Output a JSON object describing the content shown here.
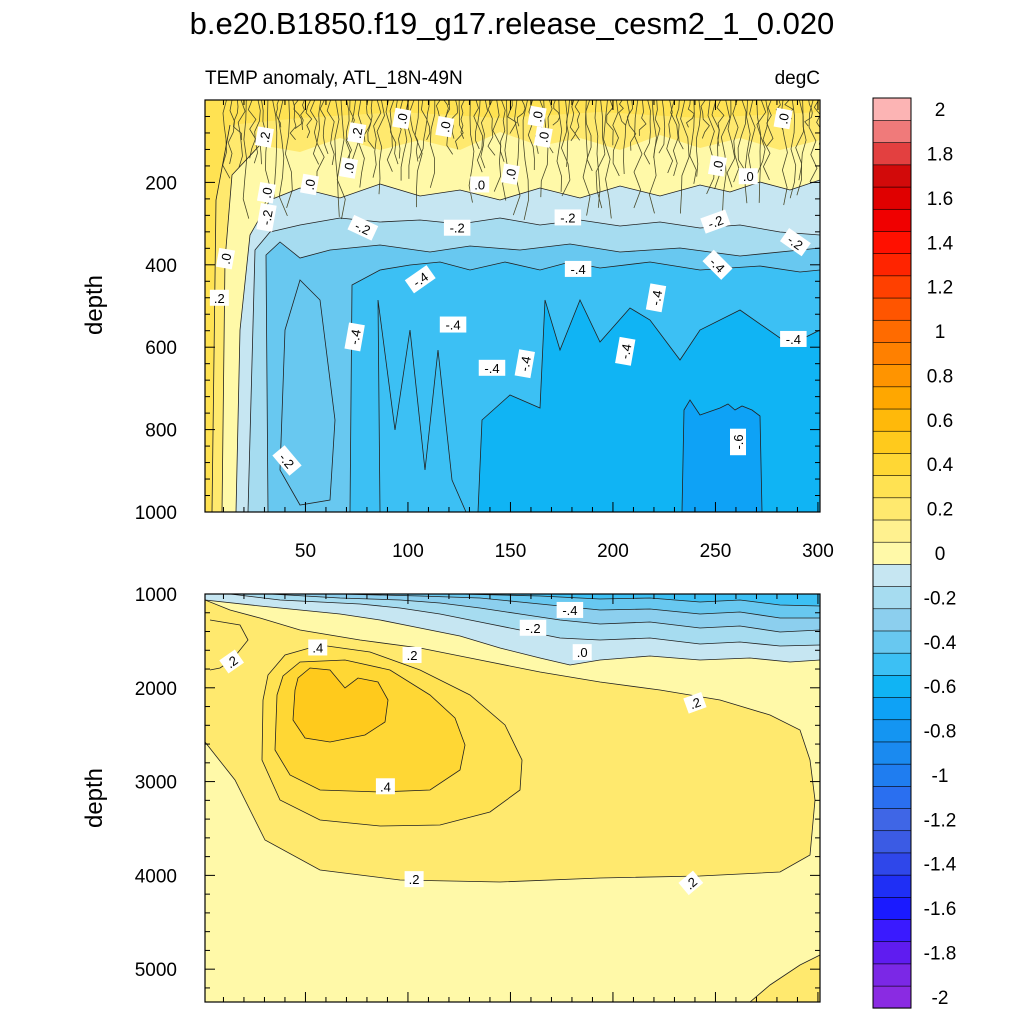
{
  "chart_data": {
    "type": "heatmap",
    "title": "b.e20.B1850.f19_g17.release_cesm2_1_0.020",
    "subtitle_left": "TEMP anomaly, ATL_18N-49N",
    "subtitle_right": "degC",
    "x": {
      "range": [
        1,
        301
      ],
      "ticks": [
        50,
        100,
        150,
        200,
        250,
        300
      ],
      "tick_labels": [
        "50",
        "100",
        "150",
        "200",
        "250",
        "300"
      ]
    },
    "panels": [
      {
        "name": "upper",
        "ylabel": "depth",
        "ylim": [
          0,
          1000
        ],
        "yticks": [
          200,
          400,
          600,
          800,
          1000
        ],
        "ytick_labels": [
          "200",
          "400",
          "600",
          "800",
          "1000"
        ],
        "contour_labels": [
          {
            "text": ".2",
            "x": 75,
            "y": 80,
            "rot": -80
          },
          {
            "text": ".2",
            "x": 30,
            "y": 90,
            "rot": -80
          },
          {
            "text": ".0",
            "x": 97,
            "y": 45,
            "rot": -80
          },
          {
            "text": ".0",
            "x": 118,
            "y": 65,
            "rot": -80
          },
          {
            "text": ".0",
            "x": 163,
            "y": 40,
            "rot": -80
          },
          {
            "text": ".0",
            "x": 166,
            "y": 90,
            "rot": -80
          },
          {
            "text": ".0",
            "x": 283,
            "y": 45,
            "rot": -80
          },
          {
            "text": ".0",
            "x": 71,
            "y": 165,
            "rot": -80
          },
          {
            "text": ".0",
            "x": 52,
            "y": 205,
            "rot": -80
          },
          {
            "text": ".0",
            "x": 31,
            "y": 225,
            "rot": -80
          },
          {
            "text": ".0",
            "x": 135,
            "y": 205,
            "rot": 0
          },
          {
            "text": ".0",
            "x": 150,
            "y": 180,
            "rot": -80
          },
          {
            "text": ".0",
            "x": 251,
            "y": 160,
            "rot": -80
          },
          {
            "text": ".0",
            "x": 266,
            "y": 185,
            "rot": 0
          },
          {
            "text": "-.2",
            "x": 31,
            "y": 285,
            "rot": -80
          },
          {
            "text": "-.2",
            "x": 78,
            "y": 310,
            "rot": 25
          },
          {
            "text": "-.2",
            "x": 124,
            "y": 310,
            "rot": 0
          },
          {
            "text": "-.2",
            "x": 178,
            "y": 285,
            "rot": 0
          },
          {
            "text": "-.2",
            "x": 250,
            "y": 295,
            "rot": -20
          },
          {
            "text": "-.2",
            "x": 289,
            "y": 345,
            "rot": 35
          },
          {
            "text": ".0",
            "x": 11,
            "y": 385,
            "rot": -80
          },
          {
            "text": ".2",
            "x": 8,
            "y": 480,
            "rot": 0
          },
          {
            "text": "-.4",
            "x": 106,
            "y": 435,
            "rot": -35
          },
          {
            "text": "-.4",
            "x": 183,
            "y": 410,
            "rot": 0
          },
          {
            "text": "-.4",
            "x": 221,
            "y": 480,
            "rot": -80
          },
          {
            "text": "-.4",
            "x": 251,
            "y": 400,
            "rot": 45
          },
          {
            "text": "-.4",
            "x": 74,
            "y": 575,
            "rot": -80
          },
          {
            "text": "-.4",
            "x": 122,
            "y": 545,
            "rot": 0
          },
          {
            "text": "-.4",
            "x": 141,
            "y": 650,
            "rot": 0
          },
          {
            "text": "-.4",
            "x": 157,
            "y": 640,
            "rot": -80
          },
          {
            "text": "-.4",
            "x": 206,
            "y": 610,
            "rot": -80
          },
          {
            "text": "-.4",
            "x": 288,
            "y": 580,
            "rot": 0
          },
          {
            "text": "-.2",
            "x": 41,
            "y": 875,
            "rot": 50
          },
          {
            "text": "-.6",
            "x": 261,
            "y": 830,
            "rot": -90
          }
        ]
      },
      {
        "name": "lower",
        "ylabel": "depth",
        "ylim": [
          1000,
          5350
        ],
        "yticks": [
          1000,
          2000,
          3000,
          4000,
          5000
        ],
        "ytick_labels": [
          "1000",
          "2000",
          "3000",
          "4000",
          "5000"
        ],
        "contour_labels": [
          {
            "text": ".2",
            "x": 14,
            "y": 1720,
            "rot": -35
          },
          {
            "text": ".4",
            "x": 56,
            "y": 1570,
            "rot": 0
          },
          {
            "text": ".2",
            "x": 102,
            "y": 1650,
            "rot": 0
          },
          {
            "text": "-.4",
            "x": 179,
            "y": 1170,
            "rot": 0
          },
          {
            "text": "-.2",
            "x": 161,
            "y": 1360,
            "rot": 0
          },
          {
            "text": ".0",
            "x": 185,
            "y": 1620,
            "rot": 0
          },
          {
            "text": ".2",
            "x": 240,
            "y": 2160,
            "rot": -20
          },
          {
            "text": ".4",
            "x": 89,
            "y": 3050,
            "rot": 0
          },
          {
            "text": ".2",
            "x": 103,
            "y": 4040,
            "rot": 0
          },
          {
            "text": ".2",
            "x": 238,
            "y": 4080,
            "rot": -40
          }
        ]
      }
    ],
    "colorbar": {
      "levels": [
        -2.0,
        -1.9,
        -1.8,
        -1.7,
        -1.6,
        -1.5,
        -1.4,
        -1.3,
        -1.2,
        -1.1,
        -1.0,
        -0.9,
        -0.8,
        -0.7,
        -0.6,
        -0.5,
        -0.4,
        -0.3,
        -0.2,
        -0.1,
        0.0,
        0.1,
        0.2,
        0.3,
        0.4,
        0.5,
        0.6,
        0.7,
        0.8,
        0.9,
        1.0,
        1.1,
        1.2,
        1.3,
        1.4,
        1.5,
        1.6,
        1.7,
        1.8,
        1.9,
        2.0
      ],
      "colors": [
        "#8a2be2",
        "#7b28e6",
        "#5f1cf0",
        "#3a1aff",
        "#1a1aff",
        "#1f2ff5",
        "#2f47ea",
        "#3b5be4",
        "#3f66e6",
        "#2a6ff0",
        "#1f7df0",
        "#1a8af0",
        "#1495f2",
        "#0ea2f6",
        "#10b4f4",
        "#3cc0f4",
        "#68c8f0",
        "#8ccfee",
        "#a6dcf0",
        "#c6e6f2",
        "#fff9a8",
        "#fff18f",
        "#ffe96e",
        "#ffe252",
        "#ffd734",
        "#ffca1c",
        "#ffb90a",
        "#ffa700",
        "#ff9400",
        "#ff8000",
        "#ff6b00",
        "#ff5500",
        "#ff4000",
        "#ff2400",
        "#ff1000",
        "#f00000",
        "#e00000",
        "#d20a0a",
        "#e34040",
        "#f07a7a",
        "#fcb4b4"
      ],
      "labels": [
        "-2",
        "-1.8",
        "-1.6",
        "-1.4",
        "-1.2",
        "-1",
        "-0.8",
        "-0.6",
        "-0.4",
        "-0.2",
        "0",
        "0.2",
        "0.4",
        "0.6",
        "0.8",
        "1",
        "1.2",
        "1.4",
        "1.6",
        "1.8",
        "2"
      ]
    }
  }
}
